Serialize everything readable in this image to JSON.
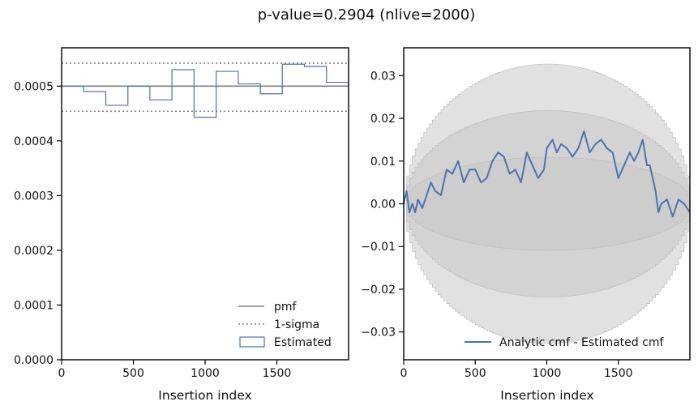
{
  "figure": {
    "suptitle": "p-value=0.2904 (nlive=2000)"
  },
  "colors": {
    "pmf": "#808080",
    "estimated": "#4c72b0",
    "band": "#c8c8c8",
    "axis": "#000000"
  },
  "chart_data": [
    {
      "type": "step",
      "xlabel": "Insertion index",
      "ylabel": "",
      "xlim": [
        0,
        2000
      ],
      "ylim": [
        0,
        0.00057
      ],
      "xticks": [
        0,
        500,
        1000,
        1500
      ],
      "xtick_labels": [
        "0",
        "500",
        "1000",
        "1500"
      ],
      "yticks": [
        0,
        0.0001,
        0.0002,
        0.0003,
        0.0004,
        0.0005
      ],
      "ytick_labels": [
        "0.0000",
        "0.0001",
        "0.0002",
        "0.0003",
        "0.0004",
        "0.0005"
      ],
      "pmf": 0.0005,
      "sigma_lines": [
        0.000454,
        0.000542
      ],
      "bin_edges": [
        0,
        154,
        308,
        462,
        615,
        769,
        923,
        1077,
        1231,
        1385,
        1538,
        1692,
        1846,
        2000
      ],
      "values": [
        0.0005,
        0.00049,
        0.000465,
        0.0005,
        0.000475,
        0.00053,
        0.000443,
        0.000527,
        0.000504,
        0.000486,
        0.00054,
        0.000536,
        0.000507
      ],
      "legend": {
        "location": "lower-right",
        "items": [
          "pmf",
          "1-sigma",
          "Estimated"
        ]
      }
    },
    {
      "type": "line",
      "xlabel": "Insertion index",
      "ylabel": "",
      "xlim": [
        0,
        2000
      ],
      "ylim": [
        -0.0365,
        0.0365
      ],
      "xticks": [
        0,
        500,
        1000,
        1500
      ],
      "xtick_labels": [
        "0",
        "500",
        "1000",
        "1500"
      ],
      "yticks": [
        -0.03,
        -0.02,
        -0.01,
        0.0,
        0.01,
        0.02,
        0.03
      ],
      "ytick_labels": [
        "−0.03",
        "−0.02",
        "−0.01",
        "0.00",
        "0.01",
        "0.02",
        "0.03"
      ],
      "bands": [
        {
          "name": "1-sigma",
          "max_halfwidth": 0.0109
        },
        {
          "name": "2-sigma",
          "max_halfwidth": 0.0218
        },
        {
          "name": "3-sigma",
          "max_halfwidth": 0.0327
        }
      ],
      "series": [
        {
          "name": "Analytic cmf - Estimated cmf",
          "x": [
            0,
            20,
            40,
            60,
            80,
            100,
            130,
            160,
            190,
            220,
            260,
            300,
            340,
            380,
            420,
            460,
            500,
            540,
            580,
            620,
            660,
            700,
            740,
            780,
            820,
            860,
            900,
            940,
            980,
            1000,
            1040,
            1070,
            1100,
            1140,
            1180,
            1220,
            1260,
            1300,
            1340,
            1380,
            1420,
            1460,
            1500,
            1540,
            1580,
            1610,
            1640,
            1670,
            1700,
            1720,
            1740,
            1760,
            1780,
            1800,
            1840,
            1880,
            1920,
            1960,
            2000
          ],
          "y": [
            0.0,
            0.003,
            -0.002,
            0.0,
            -0.002,
            0.001,
            -0.001,
            0.002,
            0.005,
            0.003,
            0.002,
            0.008,
            0.007,
            0.01,
            0.005,
            0.008,
            0.008,
            0.005,
            0.006,
            0.01,
            0.012,
            0.011,
            0.007,
            0.008,
            0.005,
            0.012,
            0.009,
            0.006,
            0.008,
            0.013,
            0.015,
            0.012,
            0.014,
            0.013,
            0.011,
            0.013,
            0.017,
            0.012,
            0.014,
            0.015,
            0.013,
            0.012,
            0.006,
            0.009,
            0.012,
            0.01,
            0.012,
            0.015,
            0.009,
            0.009,
            0.006,
            0.003,
            -0.002,
            0.0,
            0.001,
            -0.003,
            0.001,
            0.0,
            -0.002
          ]
        }
      ],
      "legend": {
        "location": "lower-right",
        "items": [
          "Analytic cmf - Estimated cmf"
        ]
      }
    }
  ]
}
